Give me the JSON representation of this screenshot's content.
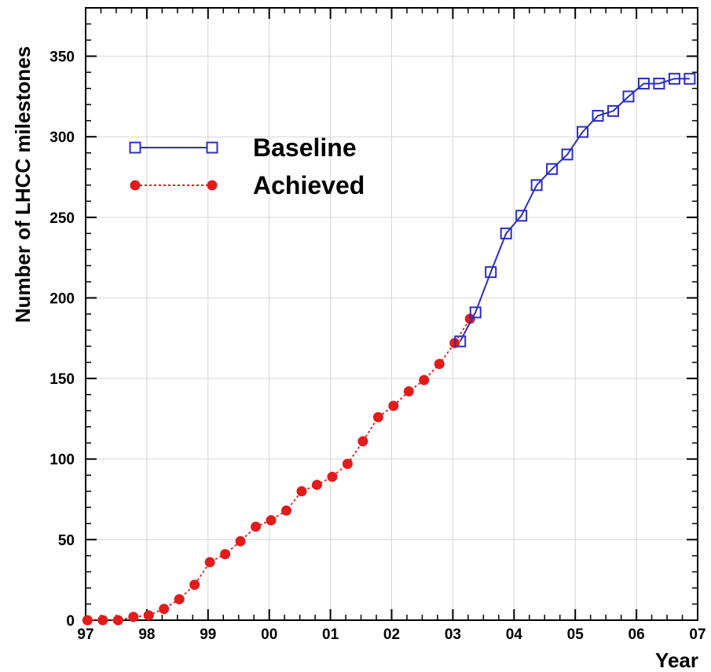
{
  "chart_data": {
    "type": "line",
    "title": "",
    "xlabel": "Year",
    "ylabel": "Number of LHCC milestones",
    "xlim": [
      1997.0,
      2007.0
    ],
    "ylim": [
      0,
      380
    ],
    "x_tick_values": [
      1997,
      1998,
      1999,
      2000,
      2001,
      2002,
      2003,
      2004,
      2005,
      2006,
      2007
    ],
    "x_tick_labels": [
      "97",
      "98",
      "99",
      "00",
      "01",
      "02",
      "03",
      "04",
      "05",
      "06",
      "07"
    ],
    "y_tick_values": [
      0,
      50,
      100,
      150,
      200,
      250,
      300,
      350
    ],
    "y_tick_labels": [
      "0",
      "50",
      "100",
      "150",
      "200",
      "250",
      "300",
      "350"
    ],
    "legend_position": "upper-left",
    "series": [
      {
        "name": "Baseline",
        "color": "#2b2fbf",
        "line_style": "solid",
        "marker": "open-square",
        "x": [
          2003.12,
          2003.37,
          2003.62,
          2003.87,
          2004.12,
          2004.37,
          2004.62,
          2004.87,
          2005.12,
          2005.37,
          2005.62,
          2005.87,
          2006.12,
          2006.37,
          2006.62,
          2006.87
        ],
        "y": [
          173,
          191,
          216,
          240,
          251,
          270,
          280,
          289,
          303,
          313,
          316,
          325,
          333,
          333,
          336,
          336
        ]
      },
      {
        "name": "Achieved",
        "color": "#e21b1b",
        "line_style": "dotted",
        "marker": "filled-circle",
        "x": [
          1997.03,
          1997.28,
          1997.53,
          1997.78,
          1998.03,
          1998.28,
          1998.53,
          1998.78,
          1999.03,
          1999.28,
          1999.53,
          1999.78,
          2000.03,
          2000.28,
          2000.53,
          2000.78,
          2001.03,
          2001.28,
          2001.53,
          2001.78,
          2002.03,
          2002.28,
          2002.53,
          2002.78,
          2003.03,
          2003.28
        ],
        "y": [
          0,
          0,
          0,
          2,
          3,
          7,
          13,
          22,
          36,
          41,
          49,
          58,
          62,
          68,
          80,
          84,
          89,
          97,
          111,
          126,
          133,
          142,
          149,
          159,
          172,
          187
        ]
      }
    ]
  }
}
